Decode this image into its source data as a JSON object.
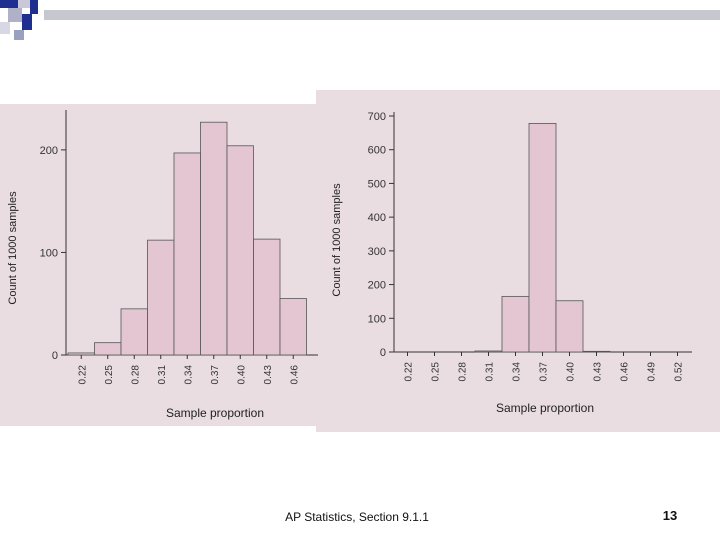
{
  "footer": {
    "text": "AP Statistics, Section 9.1.1",
    "slide_number": "13"
  },
  "colors": {
    "bar_fill": "#e4c6d3",
    "bar_stroke": "#555555",
    "panel_bg": "#e9dde2",
    "deco_blue": "#1f2f8f"
  },
  "chart_data": [
    {
      "type": "bar",
      "categories": [
        "0.22",
        "0.25",
        "0.28",
        "0.31",
        "0.34",
        "0.37",
        "0.40",
        "0.43",
        "0.46"
      ],
      "values": [
        2,
        12,
        45,
        112,
        197,
        227,
        204,
        113,
        55
      ],
      "xlabel": "Sample proportion",
      "ylabel": "Count of 1000 samples",
      "yticks": [
        "0",
        "100",
        "200"
      ],
      "ylim": [
        0,
        235
      ]
    },
    {
      "type": "bar",
      "categories": [
        "0.22",
        "0.25",
        "0.28",
        "0.31",
        "0.34",
        "0.37",
        "0.40",
        "0.43",
        "0.46",
        "0.49",
        "0.52"
      ],
      "values": [
        0,
        0,
        0,
        3,
        165,
        678,
        152,
        2,
        0,
        0,
        0
      ],
      "xlabel": "Sample proportion",
      "ylabel": "Count of 1000 samples",
      "yticks": [
        "0",
        "100",
        "200",
        "300",
        "400",
        "500",
        "600",
        "700"
      ],
      "ylim": [
        0,
        700
      ]
    }
  ]
}
